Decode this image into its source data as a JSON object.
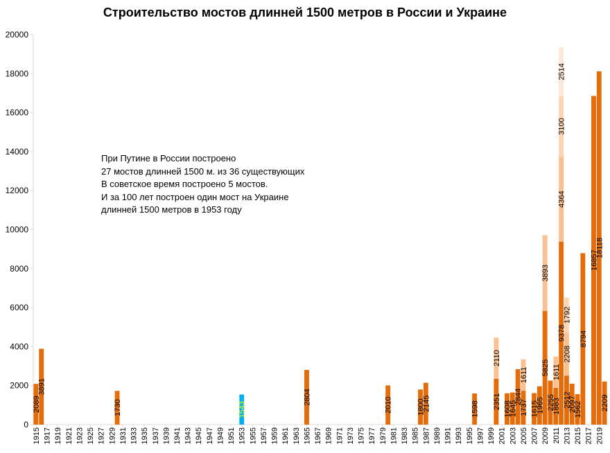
{
  "chart_data": {
    "type": "bar",
    "title": "Строительство  мостов длинней  1500 метров в России и Украине",
    "xlabel": "",
    "ylabel": "",
    "ylim": [
      0,
      20000
    ],
    "yticks": [
      "0",
      "2000",
      "4000",
      "6000",
      "8000",
      "10000",
      "12000",
      "14000",
      "16000",
      "18000",
      "20000"
    ],
    "grid": false,
    "x_range": [
      1915,
      2020
    ],
    "x_tick_labels": [
      "1915",
      "1917",
      "1919",
      "1921",
      "1923",
      "1925",
      "1927",
      "1929",
      "1931",
      "1933",
      "1935",
      "1937",
      "1939",
      "1941",
      "1943",
      "1945",
      "1947",
      "1949",
      "1951",
      "1953",
      "1955",
      "1957",
      "1959",
      "1961",
      "1963",
      "1965",
      "1967",
      "1969",
      "1971",
      "1973",
      "1975",
      "1977",
      "1979",
      "1981",
      "1983",
      "1985",
      "1987",
      "1989",
      "1991",
      "1993",
      "1995",
      "1997",
      "1999",
      "2001",
      "2003",
      "2005",
      "2007",
      "2009",
      "2011",
      "2013",
      "2015",
      "2017",
      "2019"
    ],
    "colors": {
      "bridge1": "#e46c0a",
      "bridge2": "#fac090",
      "bridge3": "#fcd5b5",
      "bridge4": "#fde9d9",
      "ukraine": "#00b0f0",
      "ukraine_label": "#ffff00"
    },
    "bars": [
      {
        "year": 1915,
        "segments": [
          {
            "value": 2089,
            "label": "2089"
          }
        ]
      },
      {
        "year": 1916,
        "segments": [
          {
            "value": 3891,
            "label": "3891"
          }
        ]
      },
      {
        "year": 1930,
        "segments": [
          {
            "value": 1730,
            "label": "1730"
          }
        ]
      },
      {
        "year": 1953,
        "segments": [
          {
            "value": 1543,
            "label": "1543",
            "ukraine": true
          }
        ]
      },
      {
        "year": 1965,
        "segments": [
          {
            "value": 2804,
            "label": "2804"
          }
        ]
      },
      {
        "year": 1980,
        "segments": [
          {
            "value": 2010,
            "label": "2010"
          }
        ]
      },
      {
        "year": 1986,
        "segments": [
          {
            "value": 1800,
            "label": "1800"
          }
        ]
      },
      {
        "year": 1987,
        "segments": [
          {
            "value": 2145,
            "label": "2145"
          }
        ]
      },
      {
        "year": 1996,
        "segments": [
          {
            "value": 1598,
            "label": "1598"
          }
        ]
      },
      {
        "year": 2000,
        "segments": [
          {
            "value": 2351,
            "label": "2351"
          },
          {
            "value": 2110,
            "label": "2110"
          }
        ]
      },
      {
        "year": 2002,
        "segments": [
          {
            "value": 1608,
            "label": "1608"
          }
        ]
      },
      {
        "year": 2003,
        "segments": [
          {
            "value": 1645,
            "label": "1645"
          }
        ]
      },
      {
        "year": 2004,
        "segments": [
          {
            "value": 2844,
            "label": "2844"
          }
        ]
      },
      {
        "year": 2005,
        "segments": [
          {
            "value": 1737,
            "label": "1737"
          },
          {
            "value": 1611,
            "label": "1611"
          }
        ]
      },
      {
        "year": 2007,
        "segments": [
          {
            "value": 1615,
            "label": "1615"
          }
        ]
      },
      {
        "year": 2008,
        "segments": [
          {
            "value": 1965,
            "label": "1965"
          }
        ]
      },
      {
        "year": 2009,
        "segments": [
          {
            "value": 5825,
            "label": "5825"
          },
          {
            "value": 3893,
            "label": "3893"
          }
        ]
      },
      {
        "year": 2010,
        "segments": [
          {
            "value": 2255,
            "label": "2255"
          }
        ]
      },
      {
        "year": 2011,
        "segments": [
          {
            "value": 1883,
            "label": "1883"
          },
          {
            "value": 1611,
            "label": "1611"
          }
        ]
      },
      {
        "year": 2012,
        "segments": [
          {
            "value": 9378,
            "label": "9378"
          },
          {
            "value": 4364,
            "label": "4364"
          },
          {
            "value": 3100,
            "label": "3100"
          },
          {
            "value": 2514,
            "label": "2514"
          }
        ]
      },
      {
        "year": 2013,
        "segments": [
          {
            "value": 2512,
            "label": "2512"
          },
          {
            "value": 2208,
            "label": "2208"
          },
          {
            "value": 1792,
            "label": "1792"
          }
        ]
      },
      {
        "year": 2014,
        "segments": [
          {
            "value": 2097,
            "label": "2097"
          }
        ]
      },
      {
        "year": 2015,
        "segments": [
          {
            "value": 1562,
            "label": "1562"
          }
        ]
      },
      {
        "year": 2016,
        "segments": [
          {
            "value": 8794,
            "label": "8794"
          }
        ]
      },
      {
        "year": 2018,
        "segments": [
          {
            "value": 16857,
            "label": "16857"
          }
        ]
      },
      {
        "year": 2019,
        "segments": [
          {
            "value": 18118,
            "label": "18118"
          }
        ]
      },
      {
        "year": 2020,
        "segments": [
          {
            "value": 2209,
            "label": "2209"
          }
        ]
      }
    ],
    "annotations": [
      "При Путине в России построено",
      "27 мостов длинней 1500  м.  из 36 существующих",
      "В советское время построено 5 мостов.",
      "И за 100  лет  построен один  мост на Украине",
      "длинней 1500  метров в 1953  году"
    ]
  }
}
